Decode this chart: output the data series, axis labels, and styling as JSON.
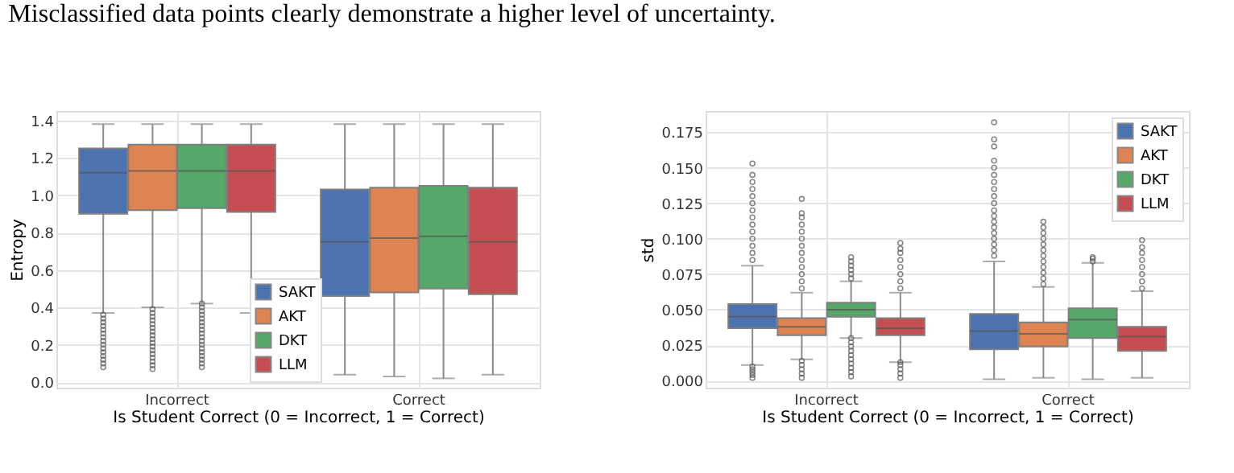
{
  "chart_data": [
    {
      "type": "box",
      "annotations": [
        "Misclassified data points clearly demonstrate a higher level of uncertainty."
      ],
      "xlabel": "Is Student Correct (0 = Incorrect, 1 = Correct)",
      "ylabel": "Entropy",
      "categories": [
        "Incorrect",
        "Correct"
      ],
      "ylim": [
        -0.03,
        1.45
      ],
      "yticks": [
        {
          "value": 0,
          "label": "0.0"
        },
        0.2,
        0.4,
        0.6,
        0.8,
        {
          "value": 1,
          "label": "1.0"
        },
        1.2,
        1.4
      ],
      "grid": true,
      "legend": "bottom",
      "series": [
        {
          "name": "SAKT",
          "color": "#4c72b0",
          "boxes": [
            {
              "low": 0.37,
              "q1": 0.9,
              "median": 1.12,
              "q3": 1.25,
              "high": 1.38,
              "outliers": [
                0.08,
                0.1,
                0.12,
                0.14,
                0.16,
                0.18,
                0.2,
                0.22,
                0.24,
                0.26,
                0.28,
                0.3,
                0.32,
                0.34,
                0.36
              ]
            },
            {
              "low": 0.04,
              "q1": 0.46,
              "median": 0.75,
              "q3": 1.03,
              "high": 1.38
            }
          ]
        },
        {
          "name": "AKT",
          "color": "#dd8452",
          "boxes": [
            {
              "low": 0.4,
              "q1": 0.92,
              "median": 1.13,
              "q3": 1.27,
              "high": 1.38,
              "outliers": [
                0.07,
                0.09,
                0.11,
                0.13,
                0.15,
                0.17,
                0.19,
                0.21,
                0.23,
                0.25,
                0.27,
                0.29,
                0.31,
                0.33,
                0.35,
                0.37,
                0.39
              ]
            },
            {
              "low": 0.03,
              "q1": 0.48,
              "median": 0.77,
              "q3": 1.04,
              "high": 1.38
            }
          ]
        },
        {
          "name": "DKT",
          "color": "#55a868",
          "boxes": [
            {
              "low": 0.42,
              "q1": 0.93,
              "median": 1.13,
              "q3": 1.27,
              "high": 1.38,
              "outliers": [
                0.08,
                0.1,
                0.12,
                0.14,
                0.16,
                0.18,
                0.2,
                0.22,
                0.24,
                0.26,
                0.28,
                0.3,
                0.32,
                0.34,
                0.36,
                0.38,
                0.4,
                0.42
              ]
            },
            {
              "low": 0.02,
              "q1": 0.5,
              "median": 0.78,
              "q3": 1.05,
              "high": 1.38
            }
          ]
        },
        {
          "name": "LLM",
          "color": "#c44e52",
          "boxes": [
            {
              "low": 0.37,
              "q1": 0.91,
              "median": 1.13,
              "q3": 1.27,
              "high": 1.38
            },
            {
              "low": 0.04,
              "q1": 0.47,
              "median": 0.75,
              "q3": 1.04,
              "high": 1.38
            }
          ]
        }
      ]
    },
    {
      "type": "box",
      "xlabel": "Is Student Correct (0 = Incorrect, 1 = Correct)",
      "ylabel": "std",
      "categories": [
        "Incorrect",
        "Correct"
      ],
      "ylim": [
        -0.005,
        0.19
      ],
      "yticks": [
        {
          "value": 0,
          "label": "0.000"
        },
        0.025,
        {
          "value": 0.05,
          "label": "0.050"
        },
        0.075,
        {
          "value": 0.1,
          "label": "0.100"
        },
        0.125,
        {
          "value": 0.15,
          "label": "0.150"
        },
        0.175
      ],
      "grid": true,
      "legend": "top right",
      "series": [
        {
          "name": "SAKT",
          "color": "#4c72b0",
          "boxes": [
            {
              "low": 0.011,
              "q1": 0.037,
              "median": 0.045,
              "q3": 0.054,
              "high": 0.081,
              "outliers": [
                0.002,
                0.004,
                0.006,
                0.008,
                0.01,
                0.085,
                0.09,
                0.095,
                0.1,
                0.105,
                0.11,
                0.115,
                0.12,
                0.125,
                0.13,
                0.135,
                0.14,
                0.145,
                0.153
              ]
            },
            {
              "low": 0.001,
              "q1": 0.022,
              "median": 0.035,
              "q3": 0.047,
              "high": 0.084,
              "outliers": [
                0.088,
                0.092,
                0.096,
                0.1,
                0.104,
                0.108,
                0.112,
                0.116,
                0.12,
                0.125,
                0.13,
                0.135,
                0.14,
                0.145,
                0.15,
                0.155,
                0.165,
                0.17,
                0.182
              ]
            }
          ]
        },
        {
          "name": "AKT",
          "color": "#dd8452",
          "boxes": [
            {
              "low": 0.015,
              "q1": 0.032,
              "median": 0.038,
              "q3": 0.044,
              "high": 0.062,
              "outliers": [
                0.002,
                0.005,
                0.008,
                0.011,
                0.014,
                0.065,
                0.07,
                0.075,
                0.08,
                0.085,
                0.09,
                0.095,
                0.1,
                0.105,
                0.11,
                0.115,
                0.118,
                0.128
              ]
            },
            {
              "low": 0.002,
              "q1": 0.024,
              "median": 0.033,
              "q3": 0.041,
              "high": 0.066,
              "outliers": [
                0.068,
                0.072,
                0.076,
                0.08,
                0.084,
                0.088,
                0.092,
                0.096,
                0.1,
                0.104,
                0.108,
                0.112
              ]
            }
          ]
        },
        {
          "name": "DKT",
          "color": "#55a868",
          "boxes": [
            {
              "low": 0.03,
              "q1": 0.045,
              "median": 0.05,
              "q3": 0.055,
              "high": 0.07,
              "outliers": [
                0.003,
                0.006,
                0.009,
                0.012,
                0.015,
                0.018,
                0.021,
                0.024,
                0.027,
                0.03,
                0.072,
                0.075,
                0.078,
                0.081,
                0.084,
                0.087
              ]
            },
            {
              "low": 0.001,
              "q1": 0.03,
              "median": 0.043,
              "q3": 0.051,
              "high": 0.083,
              "outliers": [
                0.084,
                0.086,
                0.087
              ]
            }
          ]
        },
        {
          "name": "LLM",
          "color": "#c44e52",
          "boxes": [
            {
              "low": 0.013,
              "q1": 0.032,
              "median": 0.037,
              "q3": 0.044,
              "high": 0.062,
              "outliers": [
                0.002,
                0.005,
                0.008,
                0.011,
                0.013,
                0.065,
                0.07,
                0.075,
                0.08,
                0.085,
                0.09,
                0.093,
                0.097
              ]
            },
            {
              "low": 0.002,
              "q1": 0.021,
              "median": 0.031,
              "q3": 0.038,
              "high": 0.063,
              "outliers": [
                0.065,
                0.07,
                0.075,
                0.08,
                0.085,
                0.09,
                0.094,
                0.099
              ]
            }
          ]
        }
      ]
    }
  ]
}
